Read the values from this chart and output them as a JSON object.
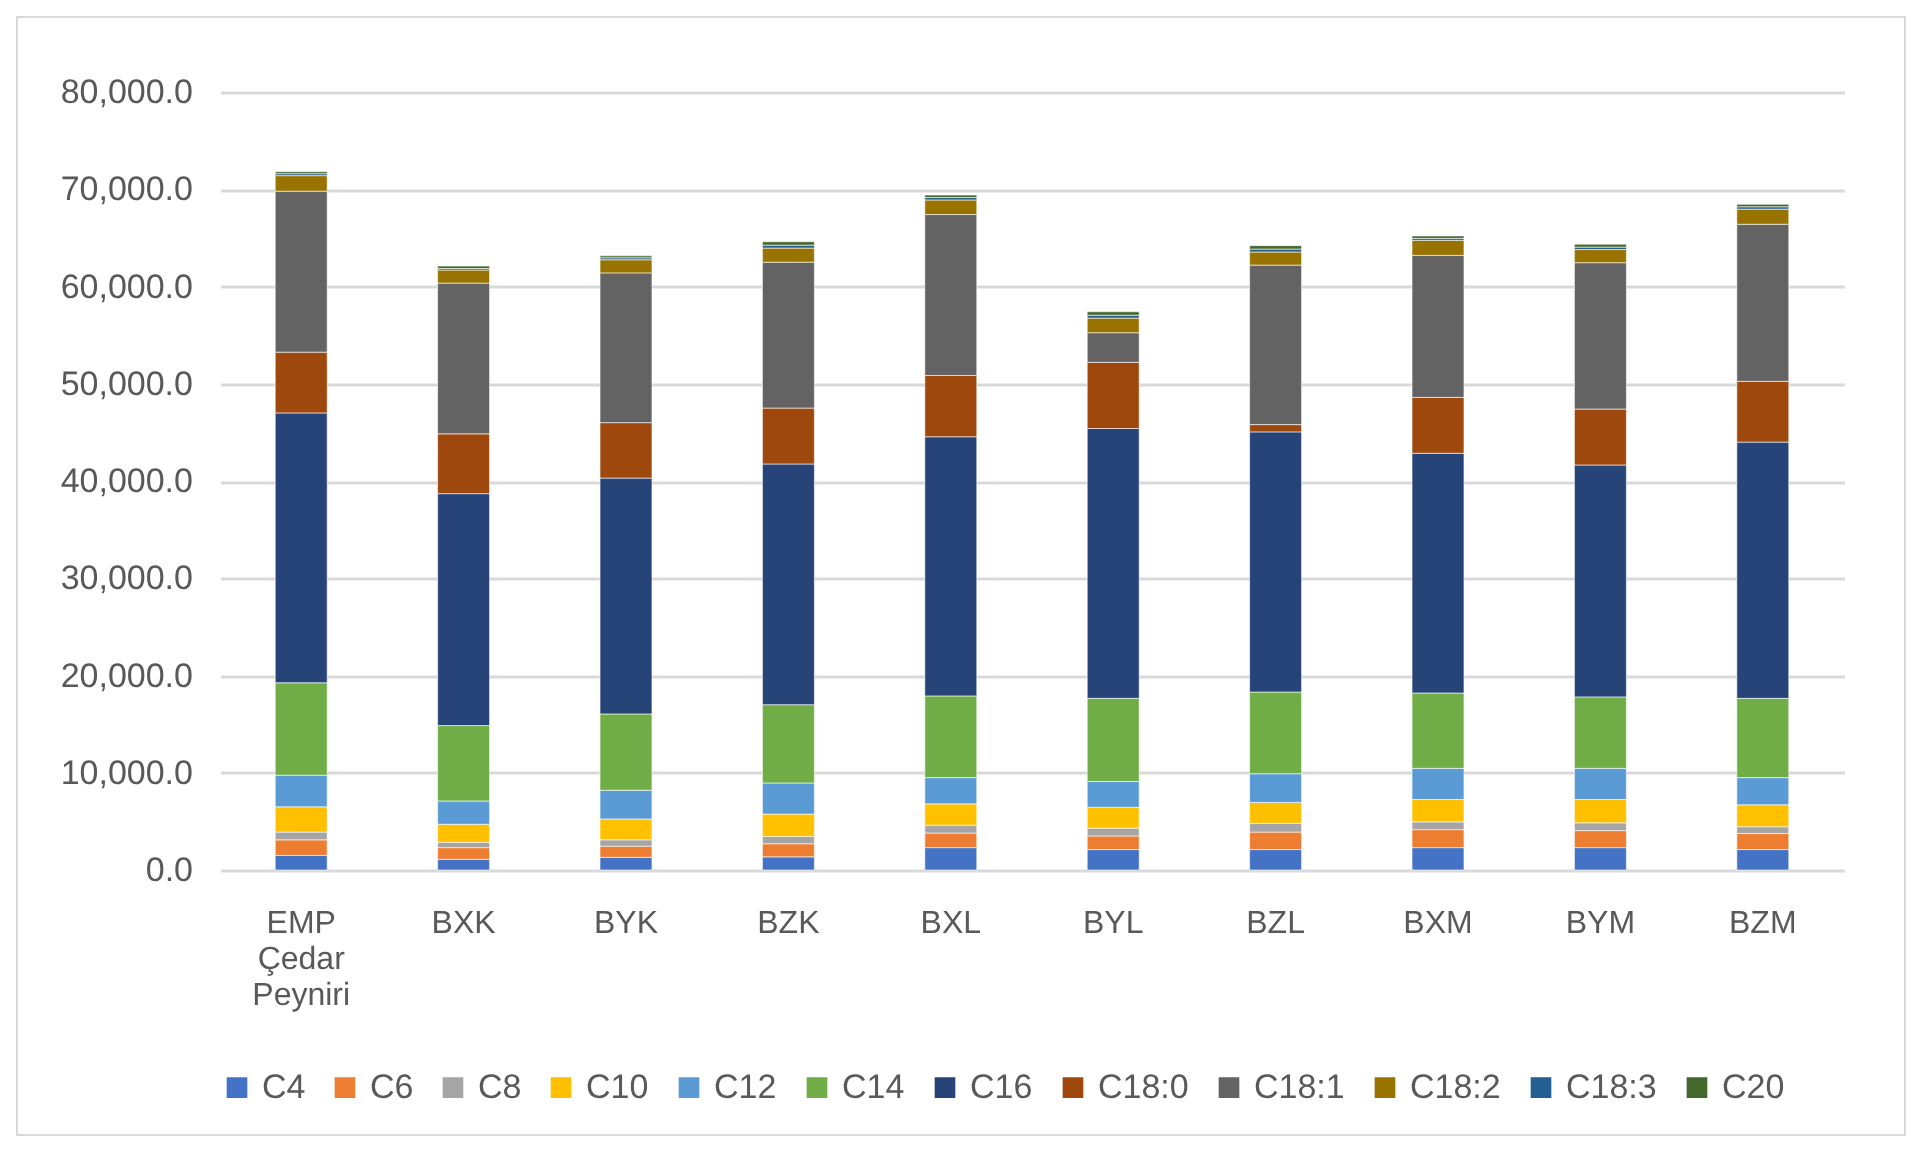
{
  "chart_data": {
    "type": "bar",
    "stacked": true,
    "categories": [
      "EMP Çedar Peyniri",
      "BXK",
      "BYK",
      "BZK",
      "BXL",
      "BYL",
      "BZL",
      "BXM",
      "BYM",
      "BZM"
    ],
    "ylim": [
      0,
      80000
    ],
    "yticks": [
      {
        "value": 0,
        "label": "0.0"
      },
      {
        "value": 10000,
        "label": "10,000.0"
      },
      {
        "value": 20000,
        "label": "20,000.0"
      },
      {
        "value": 30000,
        "label": "30,000.0"
      },
      {
        "value": 40000,
        "label": "40,000.0"
      },
      {
        "value": 50000,
        "label": "50,000.0"
      },
      {
        "value": 60000,
        "label": "60,000.0"
      },
      {
        "value": 70000,
        "label": "70,000.0"
      },
      {
        "value": 80000,
        "label": "80,000.0"
      }
    ],
    "grid": "y",
    "legend": "bottom",
    "series": [
      {
        "name": "C4",
        "color": "#4472c4",
        "values": [
          1500,
          1100,
          1300,
          1350,
          2300,
          2100,
          2100,
          2300,
          2300,
          2100
        ]
      },
      {
        "name": "C6",
        "color": "#ed7d31",
        "values": [
          1600,
          1200,
          1150,
          1350,
          1500,
          1400,
          1800,
          1850,
          1750,
          1650
        ]
      },
      {
        "name": "C8",
        "color": "#a5a5a5",
        "values": [
          800,
          550,
          650,
          750,
          800,
          800,
          900,
          800,
          800,
          700
        ]
      },
      {
        "name": "C10",
        "color": "#ffc000",
        "values": [
          2600,
          1850,
          2150,
          2300,
          2200,
          2150,
          2150,
          2300,
          2400,
          2250
        ]
      },
      {
        "name": "C12",
        "color": "#5b9bd5",
        "values": [
          3250,
          2400,
          2950,
          3200,
          2700,
          2650,
          2950,
          3200,
          3200,
          2800
        ]
      },
      {
        "name": "C14",
        "color": "#70ad47",
        "values": [
          9500,
          7750,
          7850,
          8050,
          8400,
          8550,
          8400,
          7750,
          7350,
          8150
        ]
      },
      {
        "name": "C16",
        "color": "#264478",
        "values": [
          27750,
          23850,
          24250,
          24750,
          26650,
          27750,
          26750,
          24650,
          23850,
          26350
        ]
      },
      {
        "name": "C18:0",
        "color": "#9e480e",
        "values": [
          6250,
          6150,
          5700,
          5750,
          6300,
          6800,
          750,
          5750,
          5750,
          6250
        ]
      },
      {
        "name": "C18:1",
        "color": "#636363",
        "values": [
          16550,
          15500,
          15400,
          15000,
          16550,
          3050,
          16400,
          14600,
          15050,
          16150
        ]
      },
      {
        "name": "C18:2",
        "color": "#997300",
        "values": [
          1600,
          1350,
          1350,
          1450,
          1500,
          1500,
          1350,
          1550,
          1350,
          1550
        ]
      },
      {
        "name": "C18:3",
        "color": "#255e91",
        "values": [
          200,
          150,
          200,
          300,
          250,
          300,
          300,
          200,
          250,
          250
        ]
      },
      {
        "name": "C20",
        "color": "#43682b",
        "values": [
          200,
          250,
          200,
          350,
          250,
          350,
          350,
          250,
          300,
          250
        ]
      }
    ]
  }
}
